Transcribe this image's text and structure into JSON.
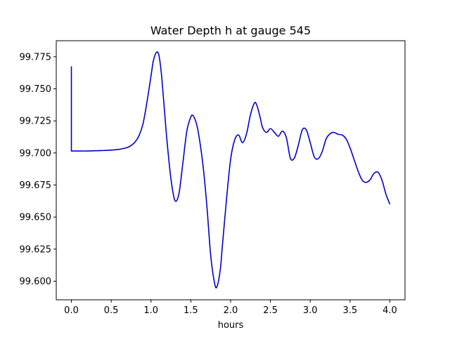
{
  "chart_data": {
    "type": "line",
    "title": "Water Depth h at gauge 545",
    "xlabel": "hours",
    "ylabel": "",
    "xlim": [
      -0.19,
      4.19
    ],
    "ylim": [
      99.5855,
      99.7875
    ],
    "grid": false,
    "x_ticks": [
      0.0,
      0.5,
      1.0,
      1.5,
      2.0,
      2.5,
      3.0,
      3.5,
      4.0
    ],
    "x_tick_labels": [
      "0.0",
      "0.5",
      "1.0",
      "1.5",
      "2.0",
      "2.5",
      "3.0",
      "3.5",
      "4.0"
    ],
    "y_ticks": [
      99.6,
      99.625,
      99.65,
      99.675,
      99.7,
      99.725,
      99.75,
      99.775
    ],
    "y_tick_labels": [
      "99.600",
      "99.625",
      "99.650",
      "99.675",
      "99.700",
      "99.725",
      "99.750",
      "99.775"
    ],
    "series": [
      {
        "color": "#0000cc",
        "x": [
          0.0,
          0.0,
          0.1,
          0.2,
          0.3,
          0.4,
          0.5,
          0.6,
          0.7,
          0.75,
          0.8,
          0.85,
          0.9,
          0.95,
          1.0,
          1.03,
          1.07,
          1.1,
          1.13,
          1.16,
          1.2,
          1.25,
          1.3,
          1.35,
          1.4,
          1.45,
          1.5,
          1.53,
          1.57,
          1.6,
          1.65,
          1.7,
          1.75,
          1.8,
          1.83,
          1.87,
          1.9,
          1.95,
          2.0,
          2.05,
          2.1,
          2.15,
          2.2,
          2.25,
          2.3,
          2.33,
          2.37,
          2.4,
          2.45,
          2.5,
          2.55,
          2.6,
          2.65,
          2.7,
          2.75,
          2.8,
          2.85,
          2.9,
          2.95,
          3.0,
          3.05,
          3.1,
          3.15,
          3.2,
          3.25,
          3.3,
          3.35,
          3.4,
          3.45,
          3.5,
          3.55,
          3.6,
          3.65,
          3.7,
          3.75,
          3.8,
          3.85,
          3.9,
          3.95,
          4.0
        ],
        "y": [
          99.7675,
          99.7015,
          99.7015,
          99.7015,
          99.7017,
          99.7019,
          99.7022,
          99.7028,
          99.7042,
          99.7058,
          99.7085,
          99.7135,
          99.7228,
          99.74,
          99.76,
          99.772,
          99.7785,
          99.776,
          99.762,
          99.74,
          99.71,
          99.68,
          99.663,
          99.668,
          99.692,
          99.717,
          99.728,
          99.729,
          99.723,
          99.714,
          99.692,
          99.66,
          99.62,
          99.598,
          99.596,
          99.609,
          99.63,
          99.665,
          99.695,
          99.71,
          99.714,
          99.708,
          99.715,
          99.73,
          99.739,
          99.737,
          99.728,
          99.72,
          99.716,
          99.719,
          99.716,
          99.713,
          99.717,
          99.712,
          99.696,
          99.696,
          99.706,
          99.718,
          99.718,
          99.708,
          99.697,
          99.6955,
          99.701,
          99.711,
          99.715,
          99.716,
          99.7145,
          99.714,
          99.711,
          99.704,
          99.695,
          99.686,
          99.679,
          99.677,
          99.679,
          99.684,
          99.685,
          99.679,
          99.668,
          99.66
        ]
      }
    ]
  }
}
